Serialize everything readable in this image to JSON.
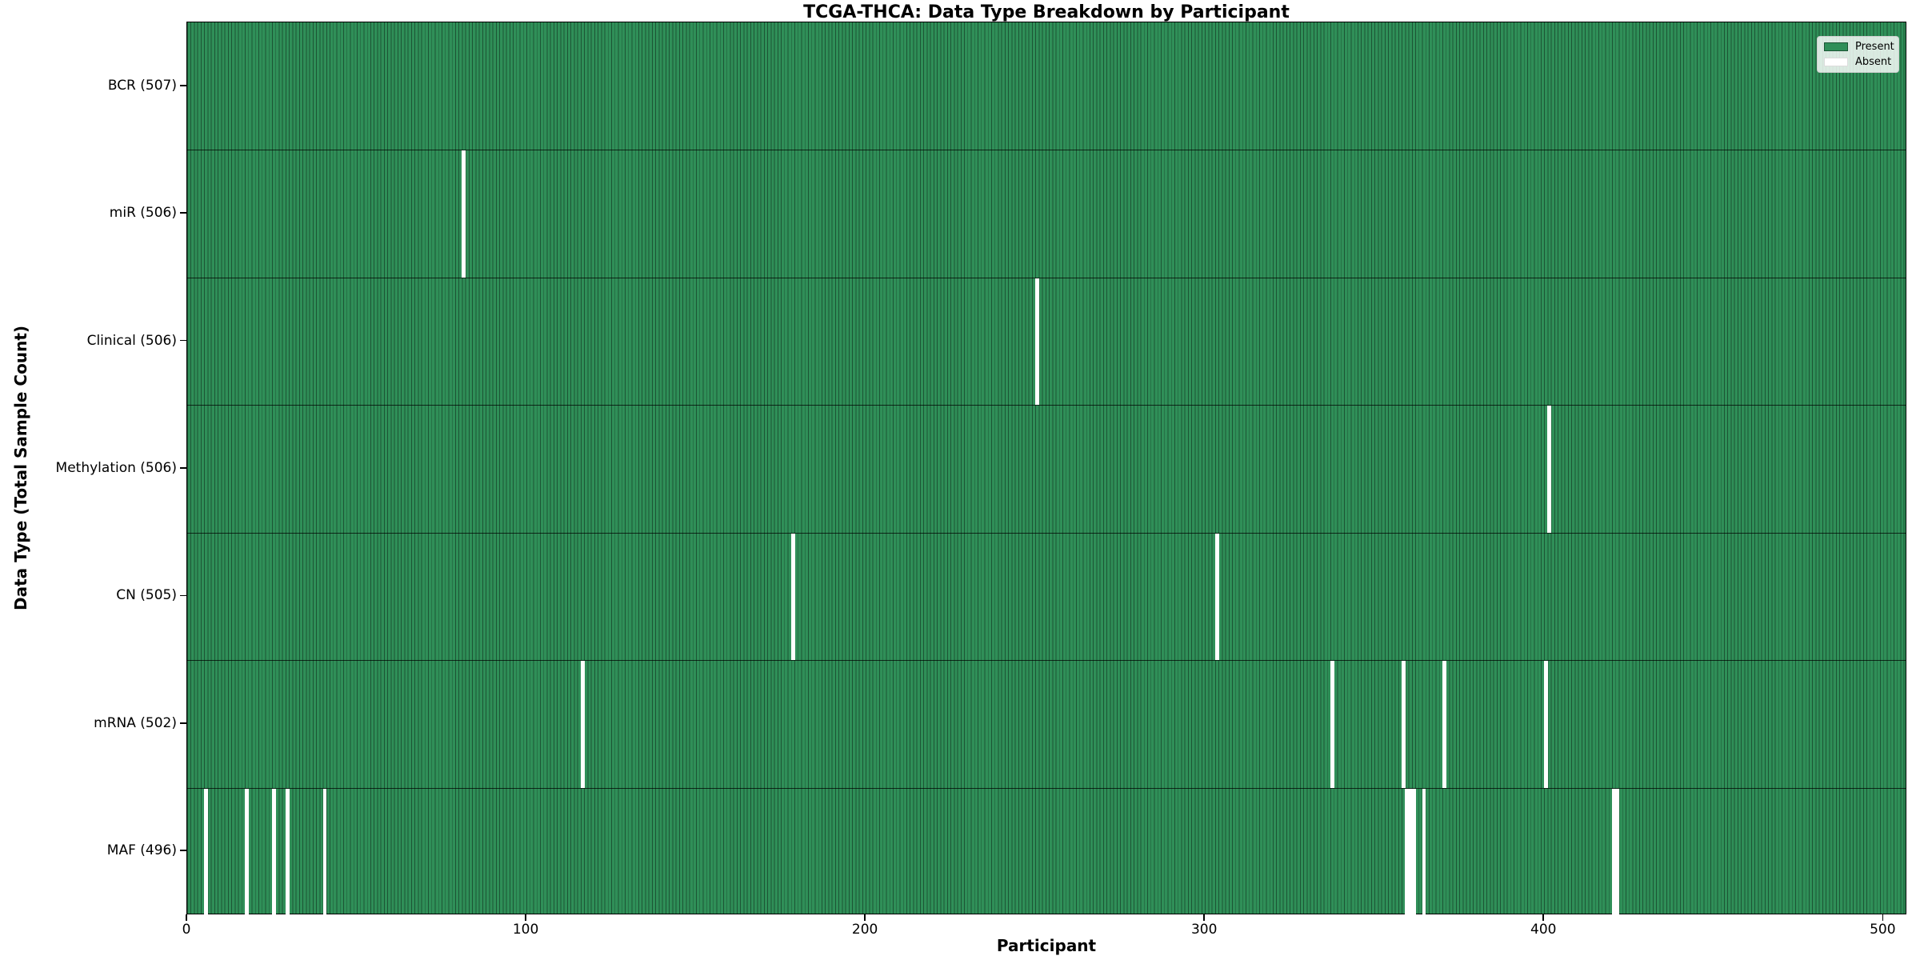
{
  "figure": {
    "title": "TCGA-THCA: Data Type Breakdown by Participant",
    "x_axis_label": "Participant",
    "y_axis_label": "Data Type (Total Sample Count)"
  },
  "legend": {
    "items": [
      {
        "label": "Present",
        "color": "#2f8f58"
      },
      {
        "label": "Absent",
        "color": "#ffffff"
      }
    ]
  },
  "colors": {
    "present_fill": "#2f8f58",
    "bar_edge": "#1c5434",
    "absent_fill": "#ffffff",
    "axis": "#000000"
  },
  "chart_data": {
    "type": "heatmap",
    "title": "TCGA-THCA: Data Type Breakdown by Participant",
    "xlabel": "Participant",
    "ylabel": "Data Type (Total Sample Count)",
    "x_ticks": [
      0,
      100,
      200,
      300,
      400,
      500
    ],
    "x_range": [
      0,
      507
    ],
    "total_participants": 507,
    "grid": false,
    "legend_position": "upper right",
    "categories": [
      "BCR (507)",
      "miR (506)",
      "Clinical (506)",
      "Methylation (506)",
      "CN (505)",
      "mRNA (502)",
      "MAF (496)"
    ],
    "rows": [
      {
        "label": "BCR (507)",
        "data_type": "BCR",
        "present_count": 507,
        "absent_participants": []
      },
      {
        "label": "miR (506)",
        "data_type": "miR",
        "present_count": 506,
        "absent_participants": [
          81
        ]
      },
      {
        "label": "Clinical (506)",
        "data_type": "Clinical",
        "present_count": 506,
        "absent_participants": [
          250
        ]
      },
      {
        "label": "Methylation (506)",
        "data_type": "Methylation",
        "present_count": 506,
        "absent_participants": [
          401
        ]
      },
      {
        "label": "CN (505)",
        "data_type": "CN",
        "present_count": 505,
        "absent_participants": [
          178,
          303
        ]
      },
      {
        "label": "mRNA (502)",
        "data_type": "mRNA",
        "present_count": 502,
        "absent_participants": [
          116,
          337,
          358,
          370,
          400
        ]
      },
      {
        "label": "MAF (496)",
        "data_type": "MAF",
        "present_count": 496,
        "absent_participants": [
          5,
          17,
          25,
          29,
          40,
          359,
          360,
          361,
          364,
          420,
          421
        ]
      }
    ]
  }
}
